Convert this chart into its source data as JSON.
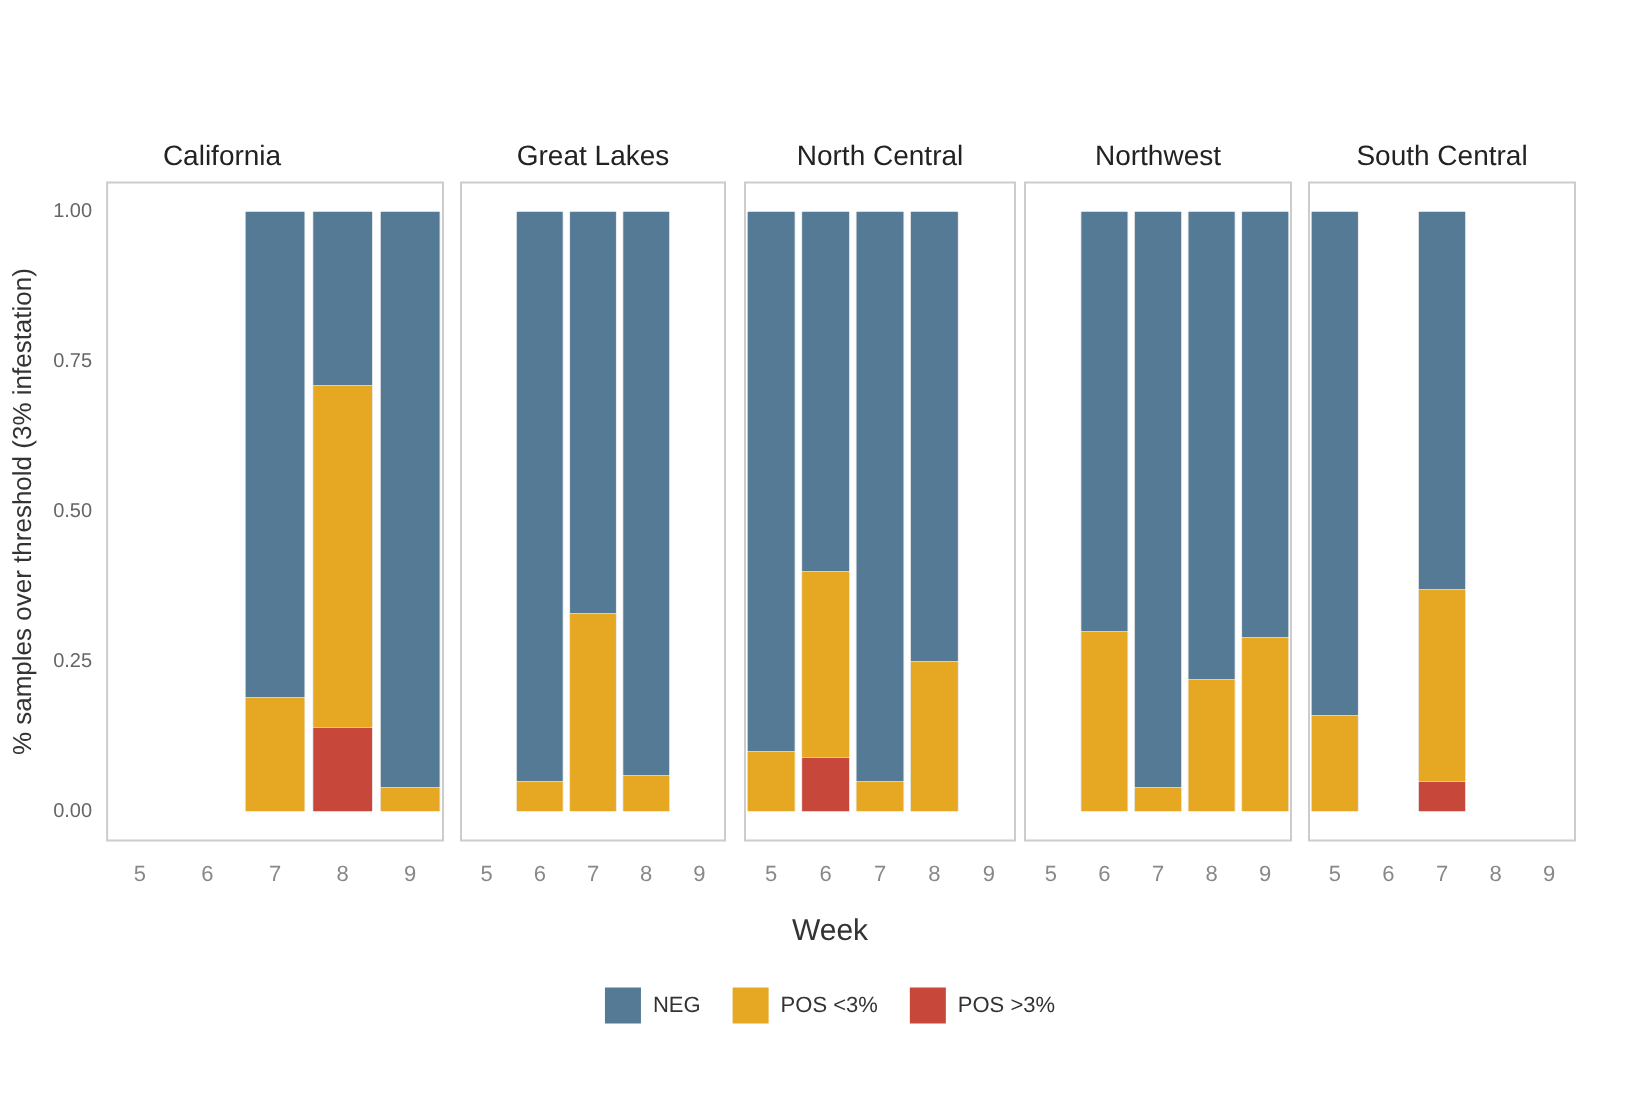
{
  "chart_data": [
    {
      "type": "bar",
      "title": "California",
      "categories": [
        "5",
        "6",
        "7",
        "8",
        "9"
      ],
      "stacked": true,
      "ylabel": "% samples over threshold (3% infestation)",
      "ylim": [
        -0.05,
        1.05
      ],
      "yticks": [
        {
          "value": 0,
          "label": "0.00"
        },
        {
          "value": 0.25,
          "label": "0.25"
        },
        {
          "value": 0.5,
          "label": "0.50"
        },
        {
          "value": 0.75,
          "label": "0.75"
        },
        {
          "value": 1,
          "label": "1.00"
        }
      ],
      "grid": false,
      "legend": false,
      "series": [
        {
          "color": "#c8473b",
          "values": [
            null,
            null,
            0,
            0.14,
            0
          ]
        },
        {
          "color": "#e6a723",
          "values": [
            null,
            null,
            0.19,
            0.57,
            0.04
          ]
        },
        {
          "color": "#557a95",
          "values": [
            null,
            null,
            0.81,
            0.29,
            0.96
          ]
        }
      ]
    },
    {
      "type": "bar",
      "title": "Great Lakes",
      "categories": [
        "5",
        "6",
        "7",
        "8",
        "9"
      ],
      "stacked": true,
      "ylim": [
        -0.05,
        1.05
      ],
      "tick_labels": "x",
      "grid": false,
      "legend": false,
      "series": [
        {
          "color": "#c8473b",
          "values": [
            null,
            0,
            0,
            0,
            null
          ]
        },
        {
          "color": "#e6a723",
          "values": [
            null,
            0.05,
            0.33,
            0.06,
            null
          ]
        },
        {
          "color": "#557a95",
          "values": [
            null,
            0.95,
            0.67,
            0.94,
            null
          ]
        }
      ]
    },
    {
      "type": "bar",
      "title": "North Central",
      "xlabel": "Week",
      "categories": [
        "5",
        "6",
        "7",
        "8",
        "9"
      ],
      "stacked": true,
      "ylim": [
        -0.05,
        1.05
      ],
      "tick_labels": "x",
      "grid": false,
      "legend": "bottom",
      "series": [
        {
          "name": "POS >3%",
          "color": "#c8473b",
          "values": [
            0,
            0.09,
            0,
            0,
            null
          ]
        },
        {
          "name": "POS <3%",
          "color": "#e6a723",
          "values": [
            0.1,
            0.31,
            0.05,
            0.25,
            null
          ]
        },
        {
          "name": "NEG",
          "color": "#557a95",
          "values": [
            0.9,
            0.6,
            0.95,
            0.75,
            null
          ]
        }
      ]
    },
    {
      "type": "bar",
      "title": "Northwest",
      "categories": [
        "5",
        "6",
        "7",
        "8",
        "9"
      ],
      "stacked": true,
      "ylim": [
        -0.05,
        1.05
      ],
      "tick_labels": "x",
      "grid": false,
      "legend": false,
      "series": [
        {
          "color": "#c8473b",
          "values": [
            null,
            0,
            0,
            0,
            0
          ]
        },
        {
          "color": "#e6a723",
          "values": [
            null,
            0.3,
            0.04,
            0.22,
            0.29
          ]
        },
        {
          "color": "#557a95",
          "values": [
            null,
            0.7,
            0.96,
            0.78,
            0.71
          ]
        }
      ]
    },
    {
      "type": "bar",
      "title": "South Central",
      "categories": [
        "5",
        "6",
        "7",
        "8",
        "9"
      ],
      "stacked": true,
      "ylim": [
        -0.05,
        1.05
      ],
      "tick_labels": "x",
      "grid": false,
      "legend": false,
      "series": [
        {
          "color": "#c8473b",
          "values": [
            0,
            null,
            0.05,
            null,
            null
          ]
        },
        {
          "color": "#e6a723",
          "values": [
            0.16,
            null,
            0.32,
            null,
            null
          ]
        },
        {
          "color": "#557a95",
          "values": [
            0.84,
            null,
            0.63,
            null,
            null
          ]
        }
      ]
    }
  ]
}
